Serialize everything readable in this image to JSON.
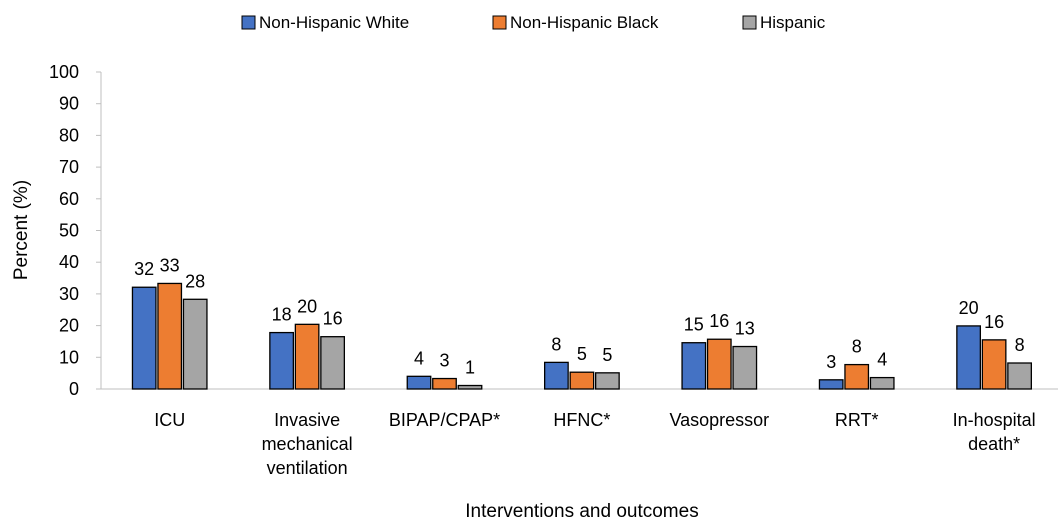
{
  "chart_data": {
    "type": "bar",
    "categories": [
      [
        "ICU"
      ],
      [
        "Invasive",
        "mechanical",
        "ventilation"
      ],
      [
        "BIPAP/CPAP*"
      ],
      [
        "HFNC*"
      ],
      [
        "Vasopressor"
      ],
      [
        "RRT*"
      ],
      [
        "In-hospital",
        "death*"
      ]
    ],
    "series": [
      {
        "name": "Non-Hispanic White",
        "color": "#4472C4",
        "values": [
          32,
          18,
          4,
          8,
          15,
          3,
          20
        ]
      },
      {
        "name": "Non-Hispanic Black",
        "color": "#ED7D31",
        "values": [
          33,
          20,
          3,
          5,
          16,
          8,
          16
        ]
      },
      {
        "name": "Hispanic",
        "color": "#A5A5A5",
        "values": [
          28,
          16,
          1,
          5,
          13,
          4,
          8
        ]
      }
    ],
    "plotted_values": [
      [
        32.1,
        17.8,
        4.0,
        8.4,
        14.6,
        2.9,
        19.9
      ],
      [
        33.3,
        20.4,
        3.3,
        5.3,
        15.7,
        7.7,
        15.5
      ],
      [
        28.3,
        16.5,
        1.1,
        5.1,
        13.4,
        3.6,
        8.2
      ]
    ],
    "xlabel": "Interventions and outcomes",
    "ylabel": "Percent (%)",
    "ylim": [
      0,
      100
    ],
    "yticks": [
      0,
      10,
      20,
      30,
      40,
      50,
      60,
      70,
      80,
      90,
      100
    ],
    "legend_position": "top",
    "grid": false
  }
}
